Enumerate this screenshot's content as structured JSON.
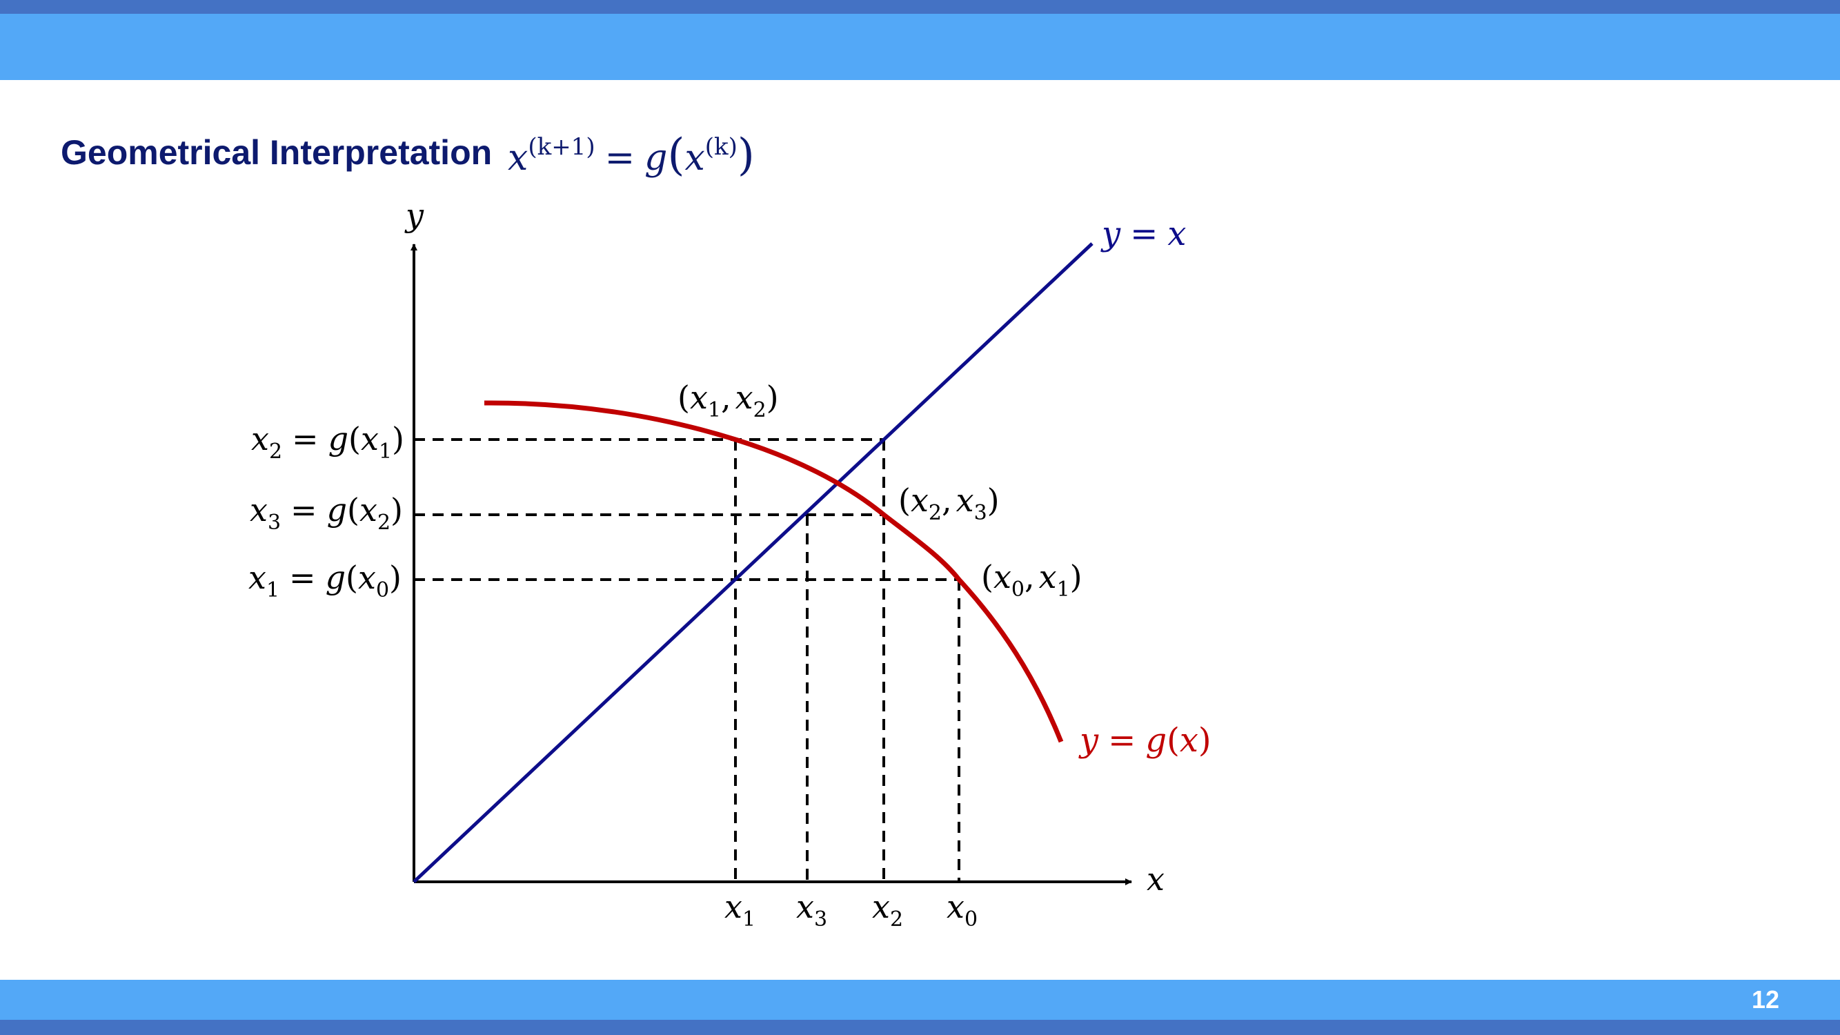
{
  "header": {
    "title": "Geometrical Interpretation"
  },
  "footer": {
    "page_number": "12"
  },
  "colors": {
    "accent_band": "#53a8f7",
    "rule": "#4472c4",
    "identity_line": "#0d0d8a",
    "g_curve": "#c00000",
    "title": "#0d1a6e"
  },
  "formula": {
    "lhs_base": "x",
    "lhs_sup": "(k+1)",
    "eq": "=",
    "g": "g",
    "paren_open": "(",
    "arg_base": "x",
    "arg_sup": "(k)",
    "paren_close": ")"
  },
  "axes": {
    "x_label": "x",
    "y_label": "y"
  },
  "curves": {
    "identity": {
      "y": "y",
      "eq": "=",
      "x": "x"
    },
    "g": {
      "y": "y",
      "eq": "=",
      "g": "g",
      "open": "(",
      "x": "x",
      "close": ")"
    }
  },
  "y_labels": [
    {
      "lhs": "x",
      "lhs_sub": "2",
      "eq": "=",
      "g": "g",
      "open": "(",
      "arg": "x",
      "arg_sub": "1",
      "close": ")"
    },
    {
      "lhs": "x",
      "lhs_sub": "3",
      "eq": "=",
      "g": "g",
      "open": "(",
      "arg": "x",
      "arg_sub": "2",
      "close": ")"
    },
    {
      "lhs": "x",
      "lhs_sub": "1",
      "eq": "=",
      "g": "g",
      "open": "(",
      "arg": "x",
      "arg_sub": "0",
      "close": ")"
    }
  ],
  "x_ticks": [
    {
      "base": "x",
      "sub": "1"
    },
    {
      "base": "x",
      "sub": "3"
    },
    {
      "base": "x",
      "sub": "2"
    },
    {
      "base": "x",
      "sub": "0"
    }
  ],
  "points": [
    {
      "open": "(",
      "a": "x",
      "a_sub": "1",
      "comma": ",",
      "b": "x",
      "b_sub": "2",
      "close": ")"
    },
    {
      "open": "(",
      "a": "x",
      "a_sub": "2",
      "comma": ",",
      "b": "x",
      "b_sub": "3",
      "close": ")"
    },
    {
      "open": "(",
      "a": "x",
      "a_sub": "0",
      "comma": ",",
      "b": "x",
      "b_sub": "1",
      "close": ")"
    }
  ]
}
